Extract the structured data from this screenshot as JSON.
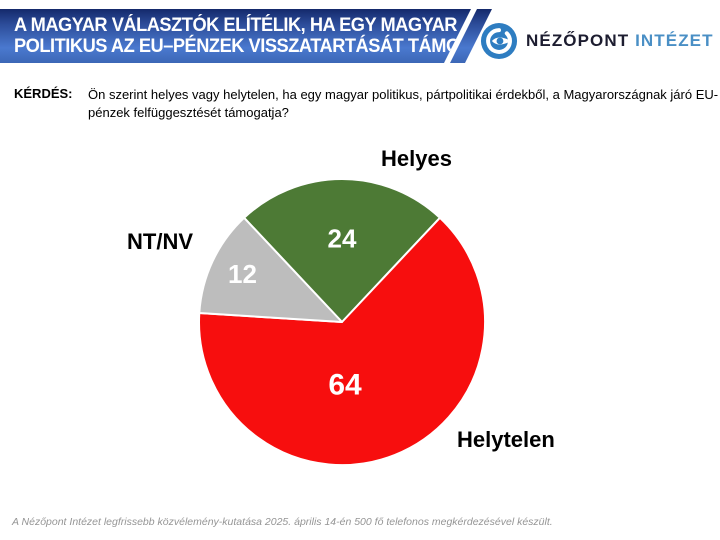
{
  "header": {
    "title_line1": "A MAGYAR VÁLASZTÓK ELÍTÉLIK, HA EGY MAGYAR",
    "title_line2": "POLITIKUS AZ EU–PÉNZEK VISSZATARTÁSÁT TÁMOGATJA",
    "brand": {
      "name_primary": "NÉZŐPONT",
      "name_secondary": "INTÉZET",
      "icon": "nezopont-eye-logo",
      "name_primary_color": "#1d1d30",
      "name_secondary_color": "#4a8fc5",
      "logo_blue": "#2e7dc1",
      "banner_top": "#14296b",
      "banner_mid1": "#2c4c99",
      "banner_mid2": "#4a79cf",
      "banner_bottom": "#3c67b6"
    }
  },
  "question": {
    "label": "KÉRDÉS:",
    "text": "Ön szerint helyes vagy helytelen, ha egy magyar politikus, pártpolitikai érdekből, a Magyarországnak járó EU-pénzek felfüggesztését támogatja?"
  },
  "chart_data": {
    "type": "pie",
    "title": "",
    "unit": "percent",
    "start_angle_deg": -43.2,
    "rotation": "clockwise",
    "slices": [
      {
        "label": "Helyes",
        "value": 24,
        "color": "#4d7a35"
      },
      {
        "label": "Helytelen",
        "value": 64,
        "color": "#f70e0e"
      },
      {
        "label": "NT/NV",
        "value": 12,
        "color": "#bdbdbd"
      }
    ],
    "value_label_color": "#ffffff",
    "category_label_color": "#000000",
    "slice_border_color": "#ffffff",
    "legend_position": "labels-outside"
  },
  "footer": {
    "source_note": "A Nézőpont Intézet legfrissebb közvélemény-kutatása 2025. április 14-én 500 fő telefonos megkérdezésével készült."
  }
}
